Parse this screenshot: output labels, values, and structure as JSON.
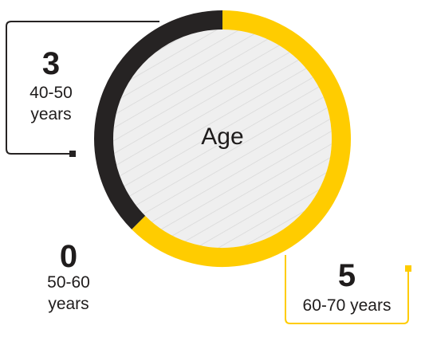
{
  "chart_data": {
    "type": "pie",
    "style": "donut",
    "center_label": "Age",
    "total": 8,
    "slices": [
      {
        "value": 5,
        "label": "60-70 years",
        "color": "#ffcc00"
      },
      {
        "value": 3,
        "label": "40-50 years",
        "color": "#262323"
      },
      {
        "value": 0,
        "label": "50-60 years",
        "color": "#262323"
      }
    ]
  },
  "annotations": {
    "a4050": {
      "value": "3",
      "label_line1": "40-50",
      "label_line2": "years"
    },
    "a5060": {
      "value": "0",
      "label_line1": "50-60",
      "label_line2": "years"
    },
    "a6070": {
      "value": "5",
      "label": "60-70 years"
    }
  },
  "colors": {
    "accent": "#ffcc00",
    "dark": "#262323",
    "hatch_bg": "#efefef",
    "hatch_line": "#dcdcdc"
  }
}
